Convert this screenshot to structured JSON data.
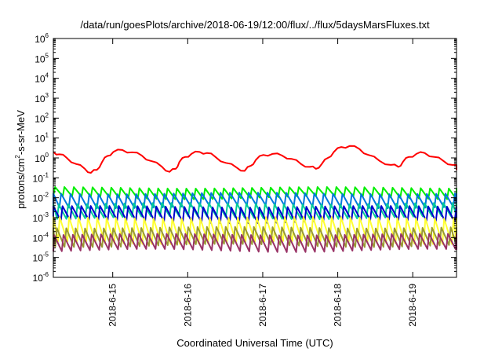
{
  "chart_data": {
    "type": "line",
    "title": "/data/run/goesPlots/archive/2018-06-19/12:00/flux/../flux/5daysMarsFluxes.txt",
    "xlabel": "Coordinated Universal Time (UTC)",
    "ylabel": {
      "prefix": "protons/cm",
      "sup": "2",
      "suffix": "-s-sr-MeV"
    },
    "yscale": "log",
    "ylim_exponent": [
      -6,
      6
    ],
    "xlim": [
      "2018-06-14 05:00",
      "2018-06-19 14:00"
    ],
    "grid": false,
    "x_tick_labels": [
      "2018-6-15",
      "2018-6-16",
      "2018-6-17",
      "2018-6-18",
      "2018-6-19"
    ],
    "x_tick_times": [
      "2018-06-15 00:00",
      "2018-06-16 00:00",
      "2018-06-17 00:00",
      "2018-06-18 00:00",
      "2018-06-19 00:00"
    ],
    "y_tick_labels": [
      {
        "base": "10",
        "exp": "6"
      },
      {
        "base": "10",
        "exp": "5"
      },
      {
        "base": "10",
        "exp": "4"
      },
      {
        "base": "10",
        "exp": "3"
      },
      {
        "base": "10",
        "exp": "2"
      },
      {
        "base": "10",
        "exp": "1"
      },
      {
        "base": "10",
        "exp": "0"
      },
      {
        "base": "10",
        "exp": "-1"
      },
      {
        "base": "10",
        "exp": "-2"
      },
      {
        "base": "10",
        "exp": "-3"
      },
      {
        "base": "10",
        "exp": "-4"
      },
      {
        "base": "10",
        "exp": "-5"
      },
      {
        "base": "10",
        "exp": "-6"
      }
    ],
    "series": [
      {
        "color": "#ff0000",
        "style": "broad-cycles",
        "points_log10": [
          [
            0.0,
            0.3
          ],
          [
            0.08,
            0.18
          ],
          [
            0.18,
            0.0
          ],
          [
            0.3,
            -0.3
          ],
          [
            0.42,
            -0.55
          ],
          [
            0.5,
            -0.75
          ],
          [
            0.58,
            -0.6
          ],
          [
            0.65,
            -0.2
          ],
          [
            0.72,
            0.1
          ],
          [
            0.8,
            0.3
          ],
          [
            0.92,
            0.4
          ],
          [
            1.05,
            0.28
          ],
          [
            1.18,
            0.12
          ],
          [
            1.3,
            -0.15
          ],
          [
            1.45,
            -0.45
          ],
          [
            1.55,
            -0.7
          ],
          [
            1.63,
            -0.55
          ],
          [
            1.68,
            -0.2
          ],
          [
            1.76,
            0.05
          ],
          [
            1.84,
            0.2
          ],
          [
            1.95,
            0.3
          ],
          [
            2.05,
            0.25
          ],
          [
            2.16,
            0.05
          ],
          [
            2.3,
            -0.25
          ],
          [
            2.45,
            -0.5
          ],
          [
            2.55,
            -0.65
          ],
          [
            2.63,
            -0.4
          ],
          [
            2.7,
            -0.1
          ],
          [
            2.8,
            0.15
          ],
          [
            2.92,
            0.2
          ],
          [
            3.05,
            0.12
          ],
          [
            3.18,
            -0.05
          ],
          [
            3.3,
            -0.3
          ],
          [
            3.42,
            -0.45
          ],
          [
            3.5,
            -0.55
          ],
          [
            3.58,
            -0.3
          ],
          [
            3.66,
            0.0
          ],
          [
            3.74,
            0.3
          ],
          [
            3.84,
            0.55
          ],
          [
            3.95,
            0.6
          ],
          [
            4.08,
            0.45
          ],
          [
            4.2,
            0.15
          ],
          [
            4.35,
            -0.15
          ],
          [
            4.5,
            -0.35
          ],
          [
            4.6,
            -0.45
          ],
          [
            4.66,
            -0.2
          ],
          [
            4.74,
            0.05
          ],
          [
            4.84,
            0.2
          ],
          [
            4.95,
            0.25
          ],
          [
            5.08,
            0.05
          ],
          [
            5.2,
            -0.15
          ],
          [
            5.32,
            -0.35
          ],
          [
            5.44,
            -0.5
          ],
          [
            5.53,
            -0.52
          ],
          [
            5.58,
            -0.5
          ]
        ]
      },
      {
        "color": "#00ee00",
        "style": "sawtooth",
        "period_days": 0.125,
        "low_log10": -2.0,
        "high_log10": -1.5,
        "phase": 0.0
      },
      {
        "color": "#0077dd",
        "style": "sawtooth",
        "period_days": 0.125,
        "low_log10": -2.45,
        "high_log10": -1.78,
        "phase": 0.35
      },
      {
        "color": "#00cc99",
        "style": "sawtooth",
        "period_days": 0.125,
        "low_log10": -3.0,
        "high_log10": -2.3,
        "phase": 0.6
      },
      {
        "color": "#0000cc",
        "style": "sawtooth",
        "period_days": 0.125,
        "low_log10": -3.2,
        "high_log10": -2.45,
        "phase": 0.2
      },
      {
        "color": "#ffff33",
        "style": "sawtooth",
        "period_days": 0.125,
        "low_log10": -4.25,
        "high_log10": -3.0,
        "phase": 0.5
      },
      {
        "color": "#999933",
        "style": "sawtooth",
        "period_days": 0.125,
        "low_log10": -4.4,
        "high_log10": -3.5,
        "phase": 0.8
      },
      {
        "color": "#993366",
        "style": "sawtooth",
        "period_days": 0.125,
        "low_log10": -4.65,
        "high_log10": -3.85,
        "phase": 0.1
      }
    ]
  }
}
